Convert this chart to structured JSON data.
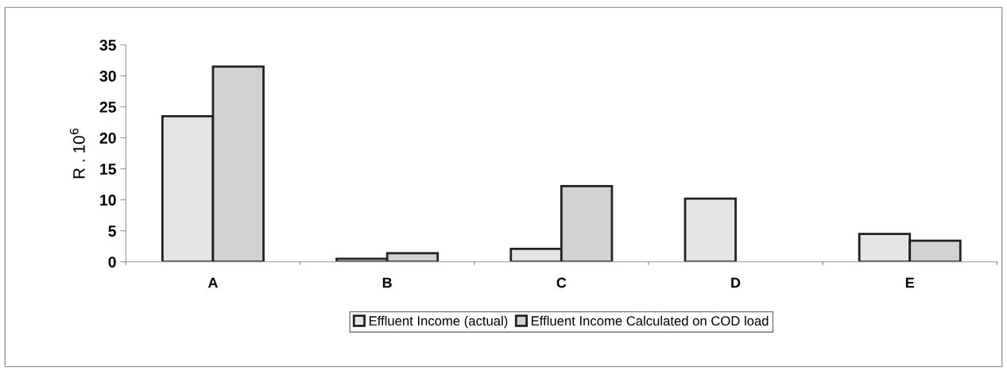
{
  "chart_data": {
    "type": "bar",
    "ylabel": "R . 10$^{6}$",
    "categories": [
      "A",
      "B",
      "C",
      "D",
      "E"
    ],
    "series": [
      {
        "name": "Effluent Income (actual)",
        "color": "#e4e4e4",
        "values": [
          23.5,
          0.5,
          2.1,
          10.2,
          4.5
        ]
      },
      {
        "name": "Effluent Income Calculated on COD load",
        "color": "#d2d2d2",
        "values": [
          31.5,
          1.4,
          12.2,
          null,
          3.4
        ]
      }
    ],
    "ylim": [
      0,
      35
    ],
    "yticks": [
      0,
      5,
      10,
      15,
      20,
      25,
      30,
      35
    ],
    "grid": false,
    "legend": "bottom"
  }
}
